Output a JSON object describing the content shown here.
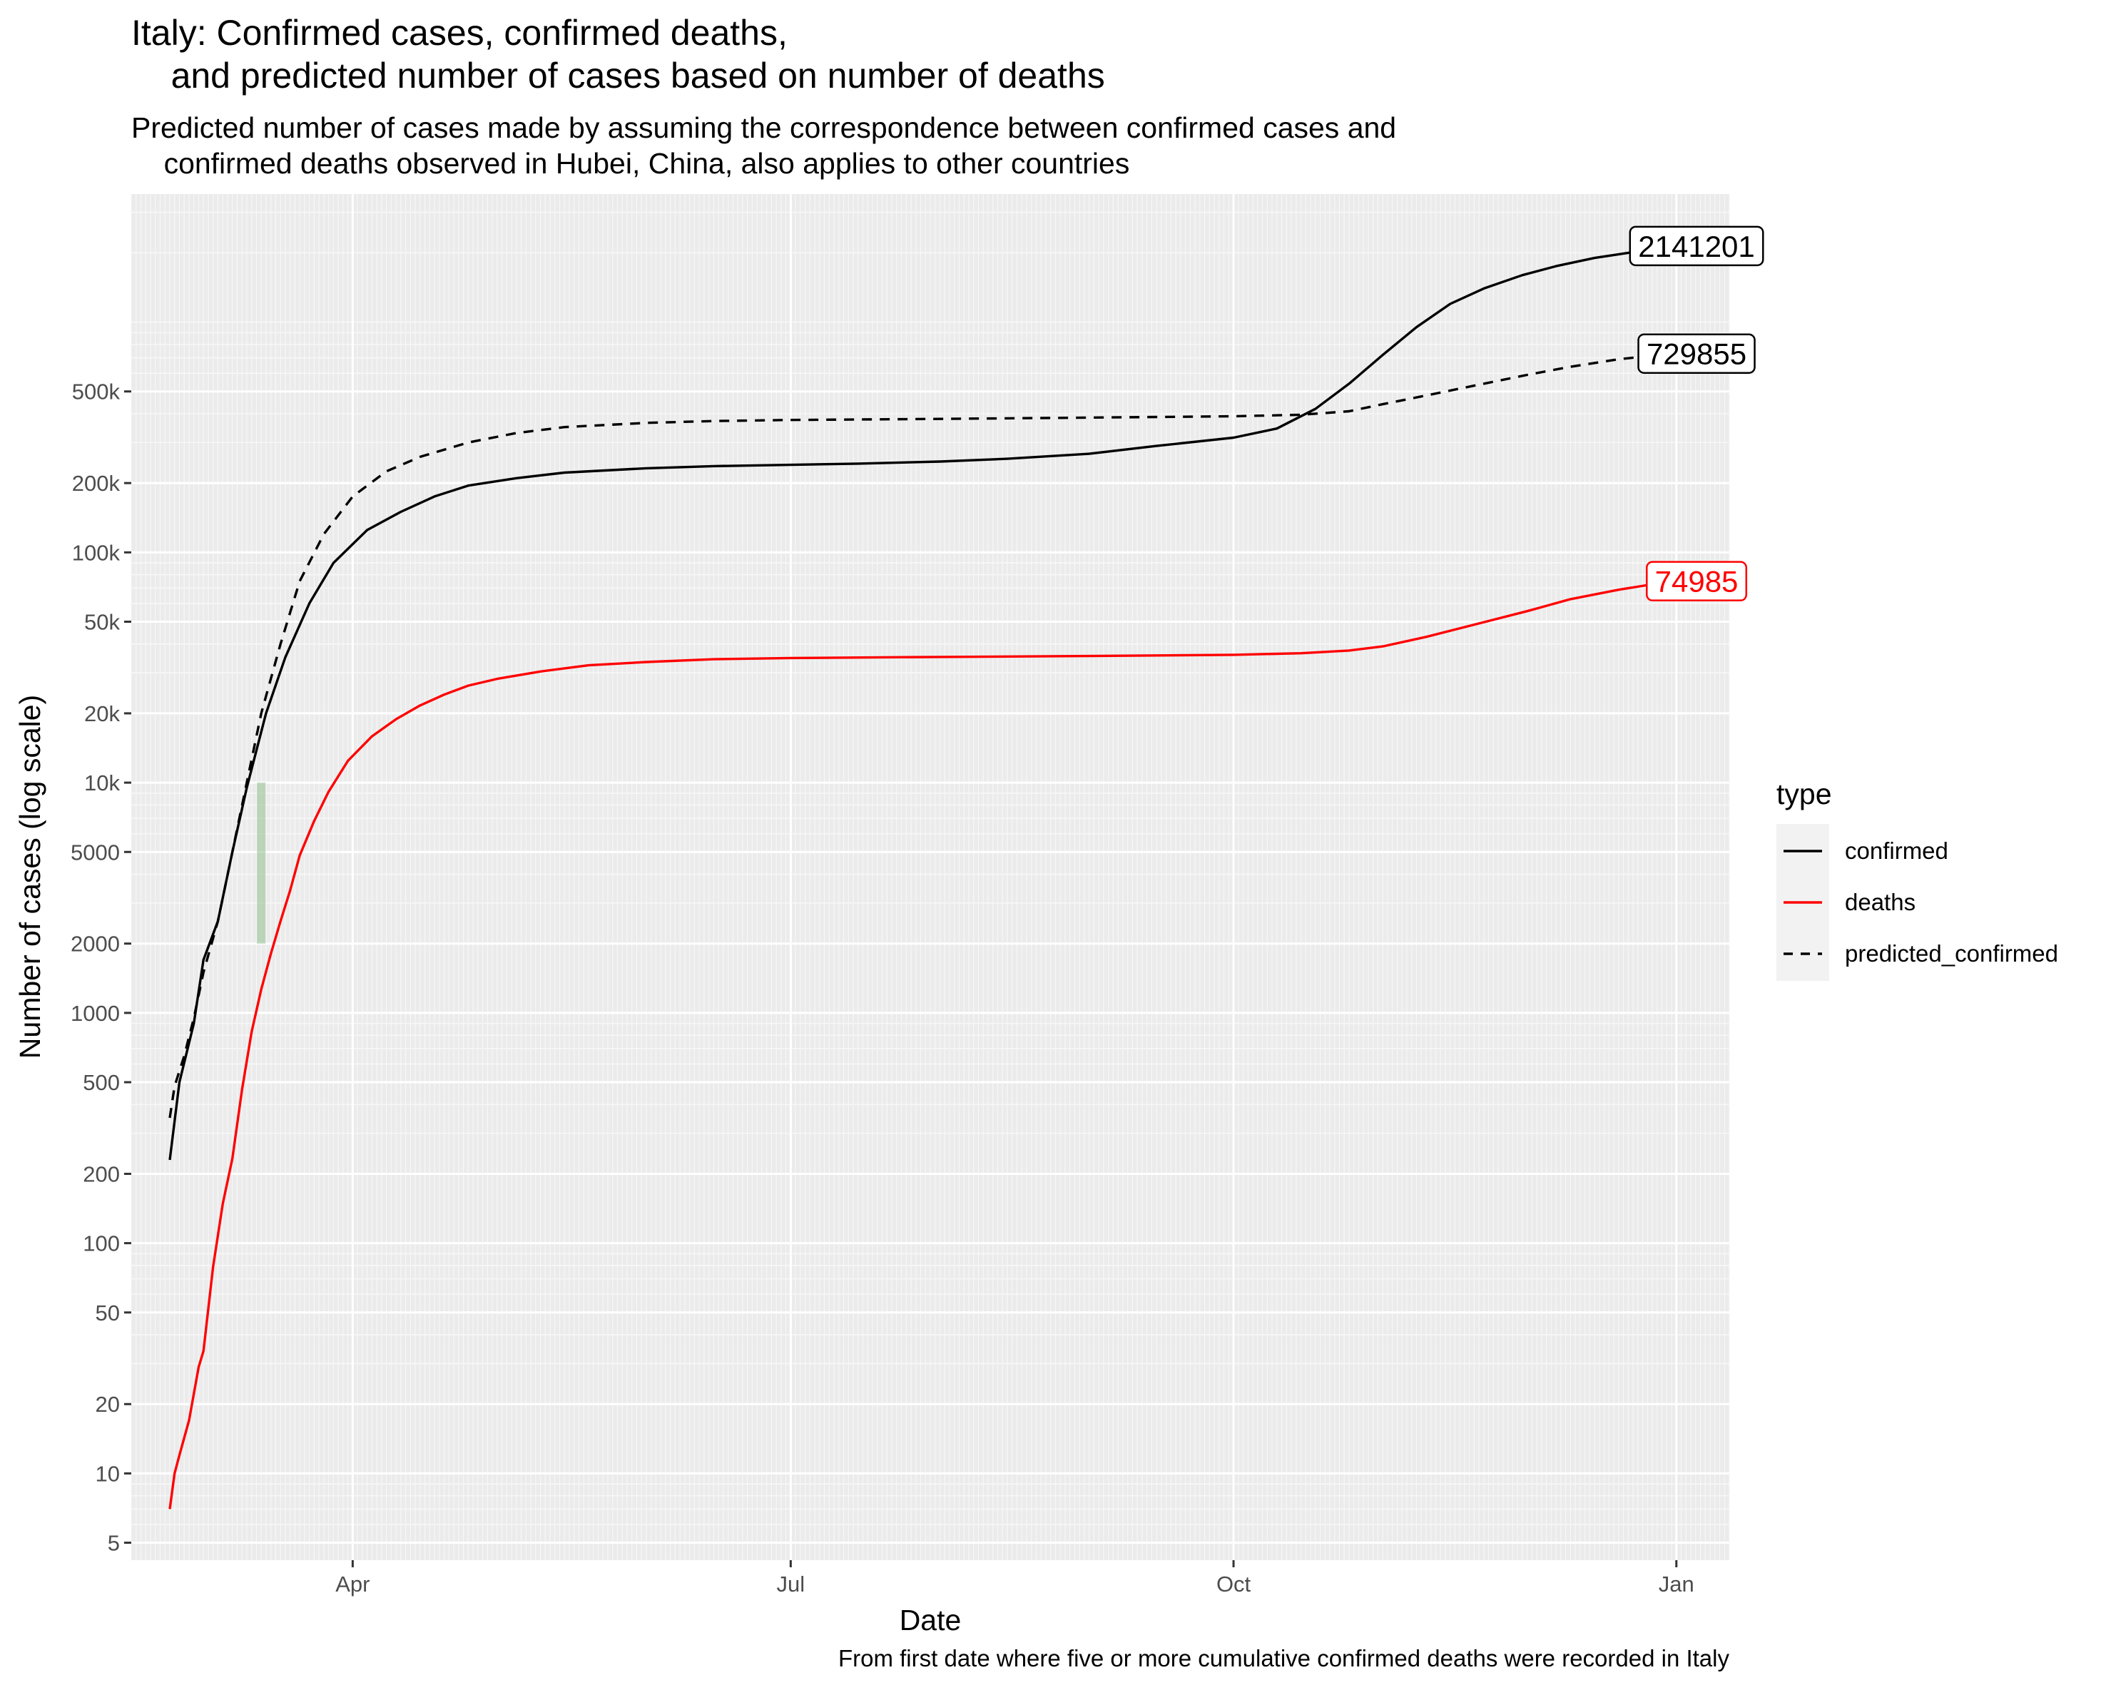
{
  "title": "Italy: Confirmed cases, confirmed deaths,\n    and predicted number of cases based on number of deaths",
  "subtitle": "Predicted number of cases made by assuming the correspondence between confirmed cases and\n    confirmed deaths observed in Hubei, China, also applies to other countries",
  "caption": "From first date where five or more cumulative confirmed deaths were recorded in Italy",
  "colors": {
    "confirmed": "#000000",
    "deaths": "#ff0000",
    "predicted_confirmed": "#000000",
    "highlight": "#8fbf8f",
    "panel": "#ebebeb"
  },
  "chart_data": {
    "type": "line",
    "xlabel": "Date",
    "ylabel": "Number of cases (log scale)",
    "y_scale": "log10",
    "ylim": [
      4.2,
      3600000
    ],
    "xlim": [
      "2020-02-15",
      "2021-01-12"
    ],
    "x_ticks": [
      {
        "date": "2020-04-01",
        "label": "Apr"
      },
      {
        "date": "2020-07-01",
        "label": "Jul"
      },
      {
        "date": "2020-10-01",
        "label": "Oct"
      },
      {
        "date": "2021-01-01",
        "label": "Jan"
      }
    ],
    "y_ticks": [
      {
        "value": 5,
        "label": "5"
      },
      {
        "value": 10,
        "label": "10"
      },
      {
        "value": 20,
        "label": "20"
      },
      {
        "value": 50,
        "label": "50"
      },
      {
        "value": 100,
        "label": "100"
      },
      {
        "value": 200,
        "label": "200"
      },
      {
        "value": 500,
        "label": "500"
      },
      {
        "value": 1000,
        "label": "1000"
      },
      {
        "value": 2000,
        "label": "2000"
      },
      {
        "value": 5000,
        "label": "5000"
      },
      {
        "value": 10000,
        "label": "10k"
      },
      {
        "value": 20000,
        "label": "20k"
      },
      {
        "value": 50000,
        "label": "50k"
      },
      {
        "value": 100000,
        "label": "100k"
      },
      {
        "value": 200000,
        "label": "200k"
      },
      {
        "value": 500000,
        "label": "500k"
      }
    ],
    "legend": {
      "title": "type",
      "position": "right",
      "entries": [
        {
          "name": "confirmed",
          "style": "solid",
          "color": "#000000"
        },
        {
          "name": "deaths",
          "style": "solid",
          "color": "#ff0000"
        },
        {
          "name": "predicted_confirmed",
          "style": "dashed",
          "color": "#000000"
        }
      ]
    },
    "highlight_range": {
      "date": "2020-03-13",
      "ymin": 2000,
      "ymax": 10000
    },
    "series": [
      {
        "name": "confirmed",
        "style": "solid",
        "color": "#000000",
        "end_label": "2141201",
        "points": [
          [
            "2020-02-23",
            230
          ],
          [
            "2020-02-25",
            500
          ],
          [
            "2020-02-28",
            900
          ],
          [
            "2020-03-01",
            1700
          ],
          [
            "2020-03-04",
            2500
          ],
          [
            "2020-03-07",
            5000
          ],
          [
            "2020-03-10",
            9500
          ],
          [
            "2020-03-14",
            20000
          ],
          [
            "2020-03-18",
            35000
          ],
          [
            "2020-03-23",
            60000
          ],
          [
            "2020-03-28",
            90000
          ],
          [
            "2020-04-04",
            125000
          ],
          [
            "2020-04-11",
            150000
          ],
          [
            "2020-04-18",
            175000
          ],
          [
            "2020-04-25",
            195000
          ],
          [
            "2020-05-05",
            210000
          ],
          [
            "2020-05-15",
            222000
          ],
          [
            "2020-06-01",
            232000
          ],
          [
            "2020-06-15",
            237000
          ],
          [
            "2020-07-01",
            240000
          ],
          [
            "2020-07-15",
            243000
          ],
          [
            "2020-08-01",
            248000
          ],
          [
            "2020-08-15",
            255000
          ],
          [
            "2020-09-01",
            268000
          ],
          [
            "2020-09-15",
            290000
          ],
          [
            "2020-10-01",
            315000
          ],
          [
            "2020-10-10",
            345000
          ],
          [
            "2020-10-18",
            420000
          ],
          [
            "2020-10-25",
            540000
          ],
          [
            "2020-11-01",
            720000
          ],
          [
            "2020-11-08",
            950000
          ],
          [
            "2020-11-15",
            1200000
          ],
          [
            "2020-11-22",
            1400000
          ],
          [
            "2020-11-30",
            1600000
          ],
          [
            "2020-12-07",
            1750000
          ],
          [
            "2020-12-15",
            1900000
          ],
          [
            "2020-12-22",
            2000000
          ],
          [
            "2020-12-31",
            2141201
          ]
        ]
      },
      {
        "name": "deaths",
        "style": "solid",
        "color": "#ff0000",
        "end_label": "74985",
        "points": [
          [
            "2020-02-23",
            7
          ],
          [
            "2020-02-24",
            10
          ],
          [
            "2020-02-25",
            12
          ],
          [
            "2020-02-27",
            17
          ],
          [
            "2020-02-29",
            29
          ],
          [
            "2020-03-01",
            34
          ],
          [
            "2020-03-03",
            79
          ],
          [
            "2020-03-05",
            148
          ],
          [
            "2020-03-07",
            233
          ],
          [
            "2020-03-09",
            463
          ],
          [
            "2020-03-11",
            827
          ],
          [
            "2020-03-13",
            1266
          ],
          [
            "2020-03-15",
            1809
          ],
          [
            "2020-03-17",
            2503
          ],
          [
            "2020-03-19",
            3405
          ],
          [
            "2020-03-21",
            4825
          ],
          [
            "2020-03-24",
            6820
          ],
          [
            "2020-03-27",
            9134
          ],
          [
            "2020-03-31",
            12428
          ],
          [
            "2020-04-05",
            15887
          ],
          [
            "2020-04-10",
            18849
          ],
          [
            "2020-04-15",
            21645
          ],
          [
            "2020-04-20",
            24114
          ],
          [
            "2020-04-25",
            26384
          ],
          [
            "2020-05-01",
            28236
          ],
          [
            "2020-05-10",
            30395
          ],
          [
            "2020-05-20",
            32330
          ],
          [
            "2020-06-01",
            33415
          ],
          [
            "2020-06-15",
            34345
          ],
          [
            "2020-07-01",
            34767
          ],
          [
            "2020-08-01",
            35154
          ],
          [
            "2020-09-01",
            35483
          ],
          [
            "2020-10-01",
            35918
          ],
          [
            "2020-10-15",
            36474
          ],
          [
            "2020-10-25",
            37479
          ],
          [
            "2020-11-01",
            39059
          ],
          [
            "2020-11-10",
            42953
          ],
          [
            "2020-11-20",
            48569
          ],
          [
            "2020-12-01",
            55576
          ],
          [
            "2020-12-10",
            62626
          ],
          [
            "2020-12-20",
            68799
          ],
          [
            "2020-12-31",
            74985
          ]
        ]
      },
      {
        "name": "predicted_confirmed",
        "style": "dashed",
        "color": "#000000",
        "end_label": "729855",
        "points": [
          [
            "2020-02-23",
            350
          ],
          [
            "2020-02-24",
            480
          ],
          [
            "2020-02-26",
            650
          ],
          [
            "2020-02-28",
            950
          ],
          [
            "2020-03-01",
            1500
          ],
          [
            "2020-03-04",
            2500
          ],
          [
            "2020-03-07",
            5000
          ],
          [
            "2020-03-10",
            10000
          ],
          [
            "2020-03-13",
            20000
          ],
          [
            "2020-03-17",
            40000
          ],
          [
            "2020-03-21",
            75000
          ],
          [
            "2020-03-26",
            120000
          ],
          [
            "2020-04-01",
            175000
          ],
          [
            "2020-04-08",
            225000
          ],
          [
            "2020-04-15",
            260000
          ],
          [
            "2020-04-25",
            300000
          ],
          [
            "2020-05-05",
            330000
          ],
          [
            "2020-05-15",
            350000
          ],
          [
            "2020-06-01",
            365000
          ],
          [
            "2020-06-15",
            372000
          ],
          [
            "2020-07-01",
            376000
          ],
          [
            "2020-08-01",
            380000
          ],
          [
            "2020-09-01",
            385000
          ],
          [
            "2020-10-01",
            390000
          ],
          [
            "2020-10-15",
            396000
          ],
          [
            "2020-10-25",
            410000
          ],
          [
            "2020-11-01",
            440000
          ],
          [
            "2020-11-10",
            480000
          ],
          [
            "2020-11-20",
            530000
          ],
          [
            "2020-12-01",
            590000
          ],
          [
            "2020-12-10",
            640000
          ],
          [
            "2020-12-20",
            690000
          ],
          [
            "2020-12-31",
            729855
          ]
        ]
      }
    ]
  }
}
